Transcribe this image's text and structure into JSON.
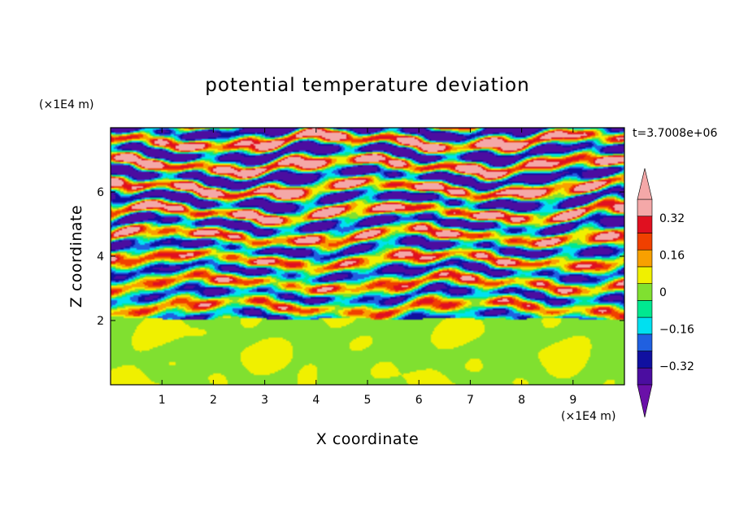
{
  "chart_data": {
    "type": "heatmap",
    "title": "potential temperature deviation",
    "xlabel": "X coordinate",
    "ylabel": "Z coordinate",
    "x_unit": "(×1E4 m)",
    "y_unit": "(×1E4 m)",
    "time_label": "t=3.7008e+06",
    "xlim": [
      0,
      10
    ],
    "ylim": [
      0,
      8
    ],
    "x_ticks": [
      "1",
      "2",
      "3",
      "4",
      "5",
      "6",
      "7",
      "8",
      "9"
    ],
    "y_ticks": [
      "2",
      "4",
      "6"
    ],
    "colorbar": {
      "labels": [
        "0.32",
        "0.16",
        "0",
        "−0.16",
        "−0.32"
      ],
      "levels": [
        -0.4,
        -0.32,
        -0.24,
        -0.16,
        -0.08,
        0,
        0.08,
        0.16,
        0.24,
        0.32,
        0.4
      ],
      "colors": [
        "#4B0DA0",
        "#1010A0",
        "#2060E0",
        "#00E0F0",
        "#00E890",
        "#80E030",
        "#F0F000",
        "#F8A000",
        "#F04000",
        "#E01020",
        "#F4A8A8"
      ],
      "over_color": "#F4A8A8",
      "under_color": "#6A10A8"
    },
    "regions": {
      "lower_layer": {
        "z_range": [
          0,
          2.1
        ],
        "dominant": [
          "0",
          "0.08"
        ]
      },
      "mid_layer": {
        "z_range": [
          2.1,
          5.0
        ],
        "values": "mixed −0.4 to 0.4"
      },
      "upper_layer": {
        "z_range": [
          5.0,
          8.0
        ],
        "dominant": [
          "over 0.4",
          "under −0.4"
        ]
      }
    }
  }
}
